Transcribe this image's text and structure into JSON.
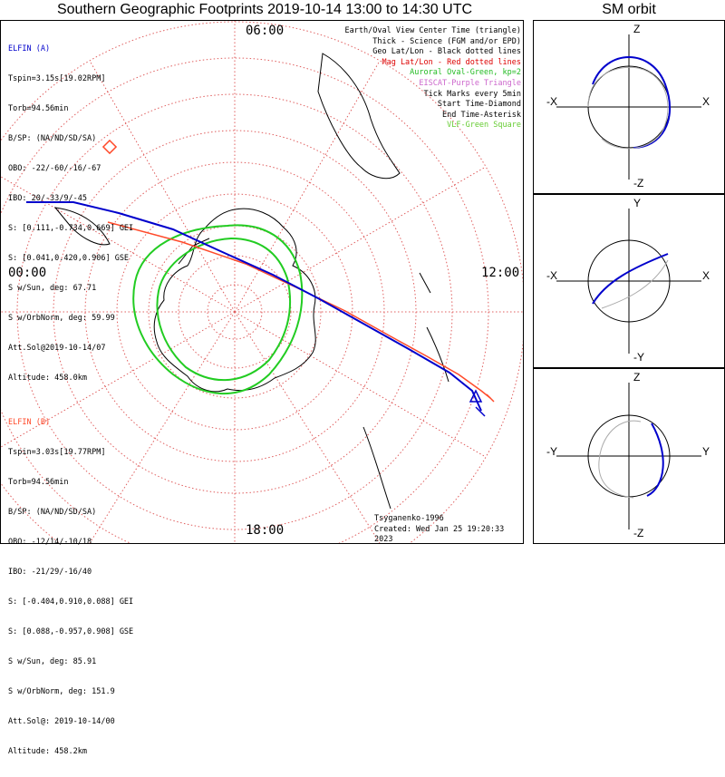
{
  "header": {
    "title": "Southern Geographic Footprints 2019-10-14 13:00 to 14:30 UTC",
    "orbit_title": "SM orbit"
  },
  "map": {
    "hour_labels": {
      "top": "06:00",
      "left": "00:00",
      "right": "12:00",
      "bottom": "18:00"
    },
    "colors": {
      "elfin_a": "#0000cc",
      "elfin_b": "#ff4a2a",
      "aurora": "#22cc22",
      "grid": "#e06060",
      "eiscat": "#cc66cc"
    }
  },
  "elfin_a": {
    "name": "ELFIN (A)",
    "lines": [
      "Tspin=3.15s[19.02RPM]",
      "Torb=94.56min",
      "B/SP: (NA/ND/SD/SA)",
      "OBO: -22/-60/-16/-67",
      "IBO: 20/-33/9/-45",
      "S: [0.111,-0.734,0.669] GEI",
      "S: [0.041,0.420,0.906] GSE",
      "S w/Sun, deg: 67.71",
      "S w/OrbNorm, deg: 59.99",
      "Att.Sol@2019-10-14/07",
      "Altitude: 458.0km"
    ]
  },
  "elfin_b": {
    "name": "ELFIN (B)",
    "lines": [
      "Tspin=3.03s[19.77RPM]",
      "Torb=94.56min",
      "B/SP: (NA/ND/SD/SA)",
      "OBO: -12/14/-10/18",
      "IBO: -21/29/-16/40",
      "S: [-0.404,0.910,0.088] GEI",
      "S: [0.088,-0.957,0.908] GSE",
      "S w/Sun, deg: 85.91",
      "S w/OrbNorm, deg: 151.9",
      "Att.Sol@: 2019-10-14/00",
      "Altitude: 458.2km"
    ]
  },
  "legend": {
    "items": [
      {
        "text": "Earth/Oval View Center Time (triangle)",
        "color": "#000000"
      },
      {
        "text": "Thick - Science (FGM and/or EPD)",
        "color": "#000000"
      },
      {
        "text": "Geo Lat/Lon - Black dotted lines",
        "color": "#000000"
      },
      {
        "text": "Mag Lat/Lon - Red dotted lines",
        "color": "#dd0000"
      },
      {
        "text": "Auroral Oval-Green, kp=2",
        "color": "#22bb22"
      },
      {
        "text": "EISCAT-Purple Triangle",
        "color": "#cc66cc"
      },
      {
        "text": "Tick Marks every 5min",
        "color": "#000000"
      },
      {
        "text": "Start Time-Diamond",
        "color": "#000000"
      },
      {
        "text": "End Time-Asterisk",
        "color": "#000000"
      },
      {
        "text": "VLF-Green Square",
        "color": "#66cc33"
      }
    ]
  },
  "footer": {
    "model": "Tsyganenko-1996",
    "created": "Created: Wed Jan 25 19:20:33 2023"
  },
  "orbit_panels": [
    {
      "top": "Z",
      "bottom": "-Z",
      "left": "-X",
      "right": "X"
    },
    {
      "top": "Y",
      "bottom": "-Y",
      "left": "-X",
      "right": "X"
    },
    {
      "top": "Z",
      "bottom": "-Z",
      "left": "-Y",
      "right": "Y"
    }
  ]
}
